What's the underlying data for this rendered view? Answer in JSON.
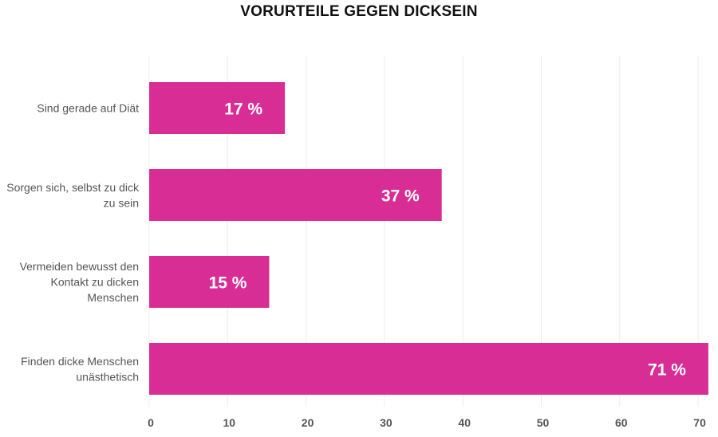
{
  "chart_data": {
    "type": "bar",
    "orientation": "horizontal",
    "title": "VORURTEILE GEGEN DICKSEIN",
    "categories": [
      [
        "Sind gerade auf Diät"
      ],
      [
        "Sorgen sich, selbst zu dick",
        "zu sein"
      ],
      [
        "Vermeiden bewusst den",
        "Kontakt zu dicken",
        "Menschen"
      ],
      [
        "Finden dicke Menschen",
        "unästhetisch"
      ]
    ],
    "values": [
      17,
      37,
      15,
      71
    ],
    "value_labels": [
      "17 %",
      "37 %",
      "15 %",
      "71 %"
    ],
    "xticks": [
      0,
      10,
      20,
      30,
      40,
      50,
      60,
      70
    ],
    "xlim": [
      0,
      72
    ],
    "xlabel": "",
    "ylabel": "",
    "grid": true,
    "bar_color": "#d92d96"
  }
}
